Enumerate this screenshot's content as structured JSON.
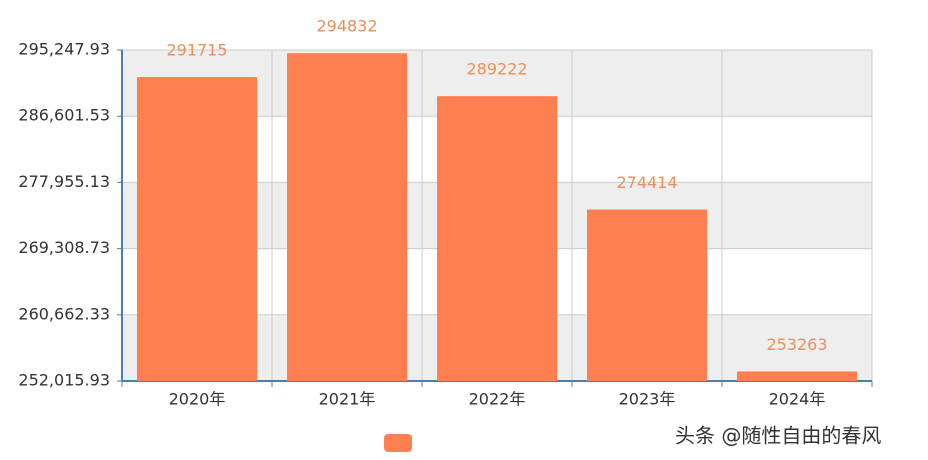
{
  "chart_data": {
    "type": "bar",
    "categories": [
      "2020年",
      "2021年",
      "2022年",
      "2023年",
      "2024年"
    ],
    "values": [
      291715,
      294832,
      289222,
      274414,
      253263
    ],
    "color": "#ff7f50",
    "label_color": "#e8915a",
    "ylim": [
      252015.93,
      295247.93
    ],
    "yticks": [
      {
        "value": 252015.93,
        "label": "252,015.93"
      },
      {
        "value": 260662.33,
        "label": "260,662.33"
      },
      {
        "value": 269308.73,
        "label": "269,308.73"
      },
      {
        "value": 277955.13,
        "label": "277,955.13"
      },
      {
        "value": 286601.53,
        "label": "286,601.53"
      },
      {
        "value": 295247.93,
        "label": "295,247.93"
      }
    ],
    "grid": true
  },
  "watermark": "头条 @随性自由的春风"
}
